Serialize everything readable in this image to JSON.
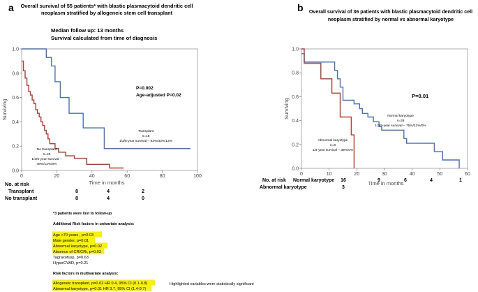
{
  "panel_a": {
    "letter": "a",
    "title_line1": "Overall survival of 55 patients* with blastic plasmacytoid dendritic cell",
    "title_line2": "neoplasm stratified by allogeneic stem cell transplant",
    "median_follow_up": "Median follow up: 13 months",
    "survival_calc": "Survival calculated from time of diagnosis",
    "p_value": "P=0.002",
    "age_adjusted_p": "Age-adjusted P=0.02",
    "transplant_label": [
      "Transplant",
      "n=15",
      "1/3/5-year survival – 93%/33%/13%"
    ],
    "no_transplant_label": [
      "No transplant",
      "n=40",
      "1/3/5-year survival –",
      "48%/12%/0%"
    ],
    "no_at_risk_title": "No. at risk",
    "risk_rows": [
      {
        "label": "Transplant",
        "values": [
          "8",
          "4",
          "2"
        ]
      },
      {
        "label": "No transplant",
        "values": [
          "8",
          "4",
          "0"
        ]
      }
    ],
    "footnote": "*3 patients were lost to follow-up",
    "univariate_title": "Additional Risk factors in univariate analysis:",
    "univariate_items": [
      {
        "text": "Age >70 years , p=0.03",
        "highlight": true
      },
      {
        "text": "Male gender, p=0.01",
        "highlight": true
      },
      {
        "text": "Abnormal karyotype, p=0.02",
        "highlight": true
      },
      {
        "text": "Absence of CR/CRi, p=0.03",
        "highlight": true
      },
      {
        "text": "Tagraxofusp, p=0.63",
        "highlight": false
      },
      {
        "text": "HyperCVAD, p=0.21",
        "highlight": false
      }
    ],
    "multivariate_title": "Risk factors in multivariate analysis:",
    "multivariate_items": [
      {
        "text": "Allogeneic transplant, p=0.02 HR 0.4, 95% CI (0.1-0.8)",
        "highlight": true
      },
      {
        "text": "Abnormal karyotype, p=0.01 HR 3.7, 95% CI (1.4-9.7)",
        "highlight": true
      }
    ],
    "highlight_note": "Highlighted variables were statistically  significant"
  },
  "panel_b": {
    "letter": "b",
    "title_line1": "Overall survival of 36 patients with blastic plasmacytoid dendritic cell",
    "title_line2": "neoplasm stratified by normal vs abnormal karyotype",
    "p_value": "P=0.01",
    "normal_label": [
      "Normal karyotype",
      "n=28",
      "1/3/5-year survival – 75%/21%/0%"
    ],
    "abnormal_label": [
      "Abnormal karyotype",
      "n=8",
      "1/3-year survival – 38%/0%"
    ],
    "no_at_risk_title": "No. at risk",
    "risk_rows": [
      {
        "label": "Normal karyotype",
        "values": [
          "16",
          "9",
          "6",
          "4",
          "1"
        ]
      },
      {
        "label": "Abnormal karyotype",
        "values": [
          "3"
        ]
      }
    ]
  },
  "chart_data": [
    {
      "type": "line",
      "subtype": "kaplan-meier",
      "title": "Overall survival of 55 patients* with blastic plasmacytoid dendritic cell neoplasm stratified by allogeneic stem cell transplant",
      "xlabel": "Time in months",
      "ylabel": "Surviving",
      "xlim": [
        0,
        100
      ],
      "ylim": [
        0,
        1.0
      ],
      "xticks": [
        "0",
        "20",
        "40",
        "60",
        "80",
        "100"
      ],
      "yticks": [
        "0.0",
        "0.2",
        "0.4",
        "0.6",
        "0.8",
        "1.0"
      ],
      "series": [
        {
          "name": "Transplant",
          "color": "#4472c4",
          "x": [
            0,
            11,
            14,
            17,
            19,
            22,
            27,
            35,
            47,
            96
          ],
          "y": [
            1.0,
            1.0,
            0.93,
            0.86,
            0.73,
            0.6,
            0.47,
            0.35,
            0.18,
            0.18
          ]
        },
        {
          "name": "No transplant",
          "color": "#c0392b",
          "x": [
            0,
            1,
            2,
            3,
            4,
            5,
            6,
            7,
            8,
            9,
            10,
            11,
            12,
            13,
            14,
            15,
            16,
            19,
            21,
            25,
            30,
            37,
            50,
            58
          ],
          "y": [
            0.9,
            0.82,
            0.76,
            0.7,
            0.65,
            0.62,
            0.58,
            0.55,
            0.5,
            0.47,
            0.44,
            0.4,
            0.37,
            0.33,
            0.3,
            0.26,
            0.22,
            0.18,
            0.15,
            0.12,
            0.1,
            0.05,
            0.02,
            0.02
          ]
        }
      ]
    },
    {
      "type": "line",
      "subtype": "kaplan-meier",
      "title": "Overall survival of 36 patients with blastic plasmacytoid dendritic cell neoplasm stratified by normal vs abnormal karyotype",
      "xlabel": "Time in months",
      "ylabel": "Surviving",
      "xlim": [
        0,
        60
      ],
      "ylim": [
        0,
        1.0
      ],
      "xticks": [
        "0",
        "10",
        "20",
        "30",
        "40",
        "50",
        "60"
      ],
      "yticks": [
        "0.0",
        "0.2",
        "0.4",
        "0.6",
        "0.8",
        "1.0"
      ],
      "series": [
        {
          "name": "Normal karyotype",
          "color": "#4472c4",
          "x": [
            0,
            1,
            12,
            13,
            14,
            15,
            19,
            21,
            22,
            24,
            26,
            28,
            29,
            31,
            37,
            38,
            48,
            51,
            54,
            57
          ],
          "y": [
            0.96,
            0.89,
            0.82,
            0.75,
            0.68,
            0.57,
            0.54,
            0.5,
            0.46,
            0.43,
            0.39,
            0.35,
            0.32,
            0.32,
            0.25,
            0.21,
            0.14,
            0.07,
            0.07,
            0.0
          ]
        },
        {
          "name": "Abnormal karyotype",
          "color": "#c0392b",
          "x": [
            0,
            1,
            7,
            11,
            14,
            18,
            19
          ],
          "y": [
            1.0,
            0.88,
            0.75,
            0.63,
            0.43,
            0.28,
            0.0
          ]
        }
      ]
    }
  ]
}
